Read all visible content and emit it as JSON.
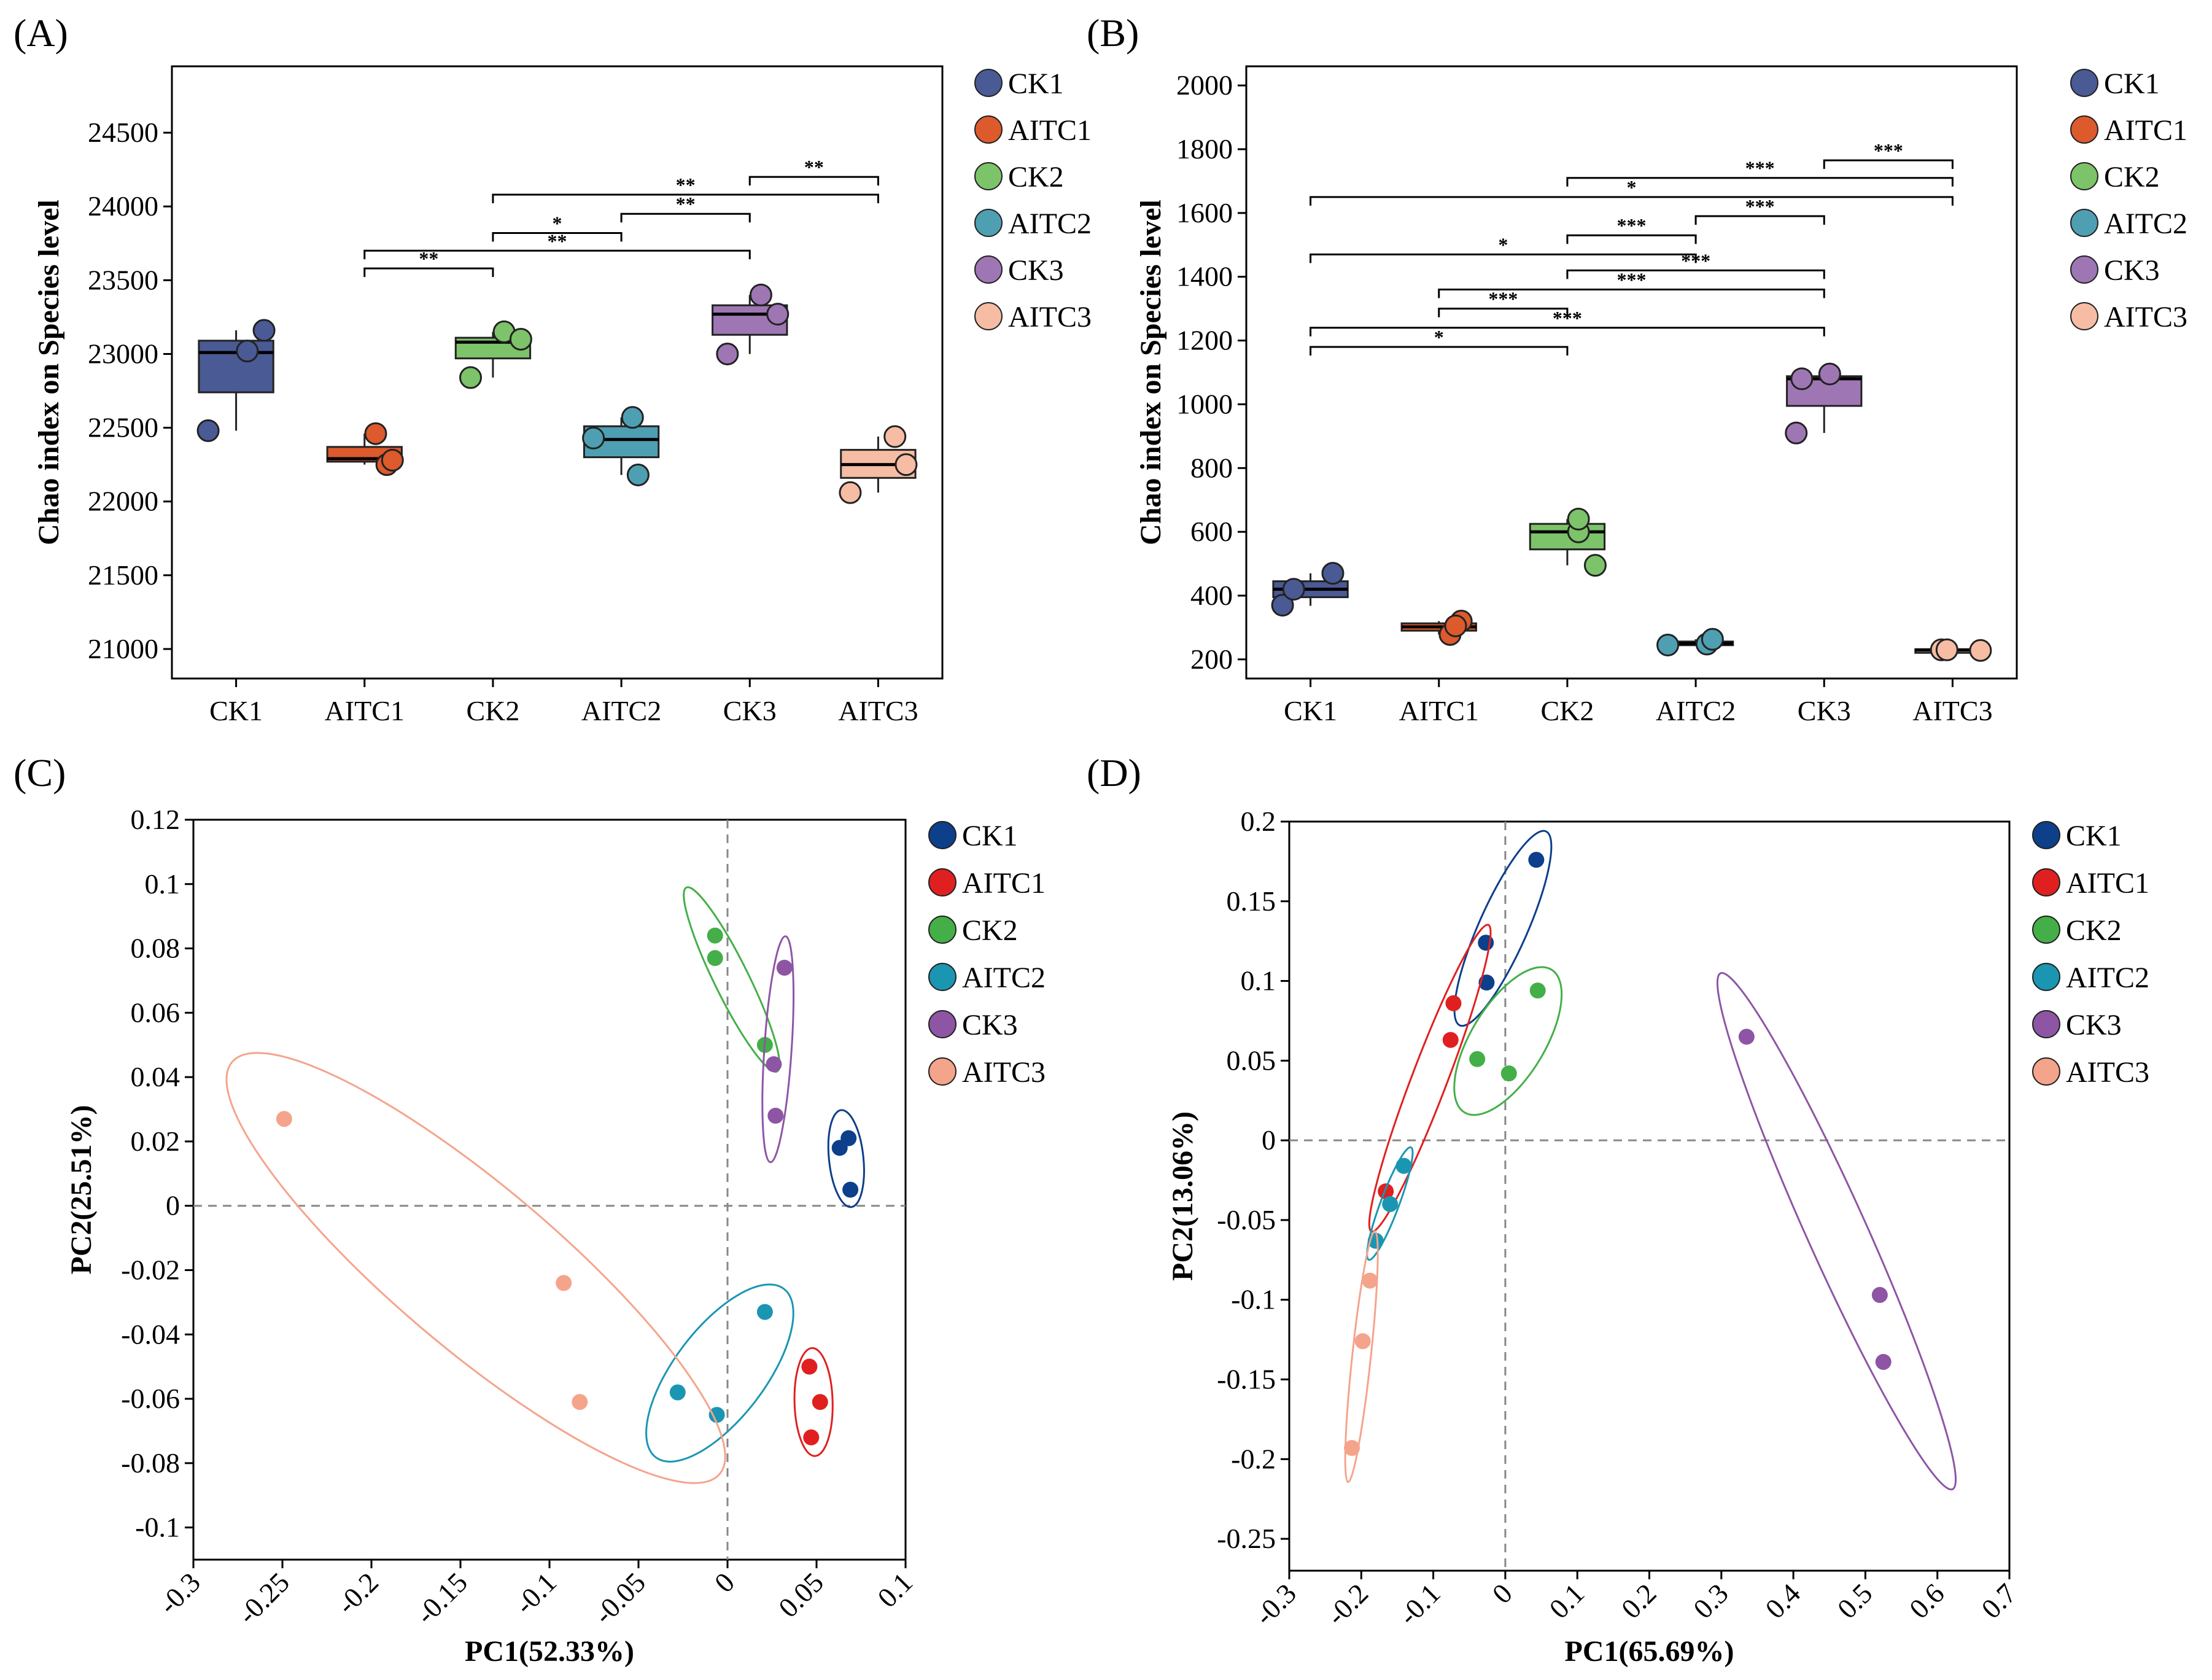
{
  "colors": {
    "box": {
      "CK1": "#4a5a94",
      "AITC1": "#dc5a2c",
      "CK2": "#7cc36a",
      "AITC2": "#4f9fb2",
      "CK3": "#9f76b4",
      "AITC3": "#f6bca4"
    },
    "pca": {
      "CK1": "#0d3f8a",
      "AITC1": "#e02020",
      "CK2": "#44af48",
      "AITC2": "#1a96b2",
      "CK3": "#8e55a4",
      "AITC3": "#f5a48c"
    }
  },
  "chart_data": [
    {
      "id": "A",
      "type": "box",
      "panel_label": "(A)",
      "ylabel": "Chao index on Species level",
      "xlabel": "",
      "ylim": [
        20800,
        24950
      ],
      "yticks": [
        21000,
        21500,
        22000,
        22500,
        23000,
        23500,
        24000,
        24500
      ],
      "categories": [
        "CK1",
        "AITC1",
        "CK2",
        "AITC2",
        "CK3",
        "AITC3"
      ],
      "boxes": [
        {
          "q1": 22740,
          "median": 23010,
          "q3": 23090,
          "lo": 22480,
          "hi": 23160
        },
        {
          "q1": 22270,
          "median": 22290,
          "q3": 22370,
          "lo": 22250,
          "hi": 22460
        },
        {
          "q1": 22970,
          "median": 23080,
          "q3": 23110,
          "lo": 22840,
          "hi": 23150
        },
        {
          "q1": 22300,
          "median": 22420,
          "q3": 22510,
          "lo": 22180,
          "hi": 22570
        },
        {
          "q1": 23130,
          "median": 23270,
          "q3": 23330,
          "lo": 23000,
          "hi": 23400
        },
        {
          "q1": 22160,
          "median": 22250,
          "q3": 22350,
          "lo": 22060,
          "hi": 22440
        }
      ],
      "points": [
        [
          [
            -0.5,
            22480
          ],
          [
            0.2,
            23020
          ],
          [
            0.5,
            23160
          ]
        ],
        [
          [
            0.2,
            22460
          ],
          [
            0.4,
            22250
          ],
          [
            0.5,
            22280
          ]
        ],
        [
          [
            0.2,
            23150
          ],
          [
            -0.4,
            22840
          ],
          [
            0.5,
            23100
          ]
        ],
        [
          [
            -0.5,
            22430
          ],
          [
            0.2,
            22570
          ],
          [
            0.3,
            22180
          ]
        ],
        [
          [
            0.2,
            23400
          ],
          [
            -0.4,
            23000
          ],
          [
            0.5,
            23270
          ]
        ],
        [
          [
            -0.5,
            22060
          ],
          [
            0.3,
            22440
          ],
          [
            0.5,
            22250
          ]
        ]
      ],
      "significance": [
        {
          "from": 1,
          "to": 2,
          "label": "**",
          "y": 23580
        },
        {
          "from": 1,
          "to": 4,
          "label": "**",
          "y": 23700
        },
        {
          "from": 2,
          "to": 3,
          "label": "*",
          "y": 23820
        },
        {
          "from": 3,
          "to": 4,
          "label": "**",
          "y": 23950
        },
        {
          "from": 2,
          "to": 5,
          "label": "**",
          "y": 24080
        },
        {
          "from": 4,
          "to": 5,
          "label": "**",
          "y": 24200
        }
      ],
      "legend": [
        "CK1",
        "AITC1",
        "CK2",
        "AITC2",
        "CK3",
        "AITC3"
      ]
    },
    {
      "id": "B",
      "type": "box",
      "panel_label": "(B)",
      "ylabel": "Chao index on Species level",
      "xlabel": "",
      "ylim": [
        140,
        2060
      ],
      "yticks": [
        200,
        400,
        600,
        800,
        1000,
        1200,
        1400,
        1600,
        1800,
        2000
      ],
      "categories": [
        "CK1",
        "AITC1",
        "CK2",
        "AITC2",
        "CK3",
        "AITC3"
      ],
      "boxes": [
        {
          "q1": 395,
          "median": 420,
          "q3": 445,
          "lo": 368,
          "hi": 470
        },
        {
          "q1": 290,
          "median": 302,
          "q3": 313,
          "lo": 278,
          "hi": 320
        },
        {
          "q1": 545,
          "median": 600,
          "q3": 625,
          "lo": 495,
          "hi": 640
        },
        {
          "q1": 245,
          "median": 250,
          "q3": 256,
          "lo": 243,
          "hi": 263
        },
        {
          "q1": 995,
          "median": 1080,
          "q3": 1088,
          "lo": 910,
          "hi": 1095
        },
        {
          "q1": 226,
          "median": 229,
          "q3": 232,
          "lo": 226,
          "hi": 232
        }
      ],
      "points": [
        [
          [
            -0.5,
            370
          ],
          [
            -0.3,
            420
          ],
          [
            0.4,
            470
          ]
        ],
        [
          [
            0.2,
            278
          ],
          [
            0.4,
            320
          ],
          [
            0.3,
            305
          ]
        ],
        [
          [
            0.2,
            600
          ],
          [
            0.2,
            640
          ],
          [
            0.5,
            495
          ]
        ],
        [
          [
            -0.5,
            245
          ],
          [
            0.2,
            248
          ],
          [
            0.3,
            263
          ]
        ],
        [
          [
            -0.5,
            910
          ],
          [
            -0.4,
            1080
          ],
          [
            0.1,
            1095
          ]
        ],
        [
          [
            -0.2,
            230
          ],
          [
            -0.1,
            230
          ],
          [
            0.5,
            228
          ]
        ]
      ],
      "significance": [
        {
          "from": 0,
          "to": 2,
          "label": "*",
          "y": 1180
        },
        {
          "from": 0,
          "to": 4,
          "label": "***",
          "y": 1240
        },
        {
          "from": 1,
          "to": 2,
          "label": "***",
          "y": 1300
        },
        {
          "from": 1,
          "to": 4,
          "label": "***",
          "y": 1360
        },
        {
          "from": 2,
          "to": 4,
          "label": "***",
          "y": 1420
        },
        {
          "from": 0,
          "to": 3,
          "label": "*",
          "y": 1470
        },
        {
          "from": 2,
          "to": 3,
          "label": "***",
          "y": 1530
        },
        {
          "from": 3,
          "to": 4,
          "label": "***",
          "y": 1590
        },
        {
          "from": 0,
          "to": 5,
          "label": "*",
          "y": 1650
        },
        {
          "from": 2,
          "to": 5,
          "label": "***",
          "y": 1710
        },
        {
          "from": 4,
          "to": 5,
          "label": "***",
          "y": 1765
        }
      ],
      "legend": [
        "CK1",
        "AITC1",
        "CK2",
        "AITC2",
        "CK3",
        "AITC3"
      ]
    },
    {
      "id": "C",
      "type": "scatter",
      "panel_label": "(C)",
      "xlabel": "PC1(52.33%)",
      "ylabel": "PC2(25.51%)",
      "xlim": [
        -0.3,
        0.1
      ],
      "ylim": [
        -0.11,
        0.12
      ],
      "xticks": [
        -0.3,
        -0.25,
        -0.2,
        -0.15,
        -0.1,
        -0.05,
        0,
        0.05,
        0.1
      ],
      "xticklabels": [
        "-0.3",
        "-0.25",
        "-0.2",
        "-0.15",
        "-0.1",
        "-0.05",
        "0",
        "0.05",
        "0.1"
      ],
      "yticks": [
        -0.1,
        -0.08,
        -0.06,
        -0.04,
        -0.02,
        0,
        0.02,
        0.04,
        0.06,
        0.08,
        0.1,
        0.12
      ],
      "yticklabels": [
        "-0.1",
        "-0.08",
        "-0.06",
        "-0.04",
        "-0.02",
        "0",
        "0.02",
        "0.04",
        "0.06",
        "0.08",
        "0.1",
        "0.12"
      ],
      "series": [
        {
          "name": "CK1",
          "points": [
            [
              0.063,
              0.018
            ],
            [
              0.068,
              0.021
            ],
            [
              0.069,
              0.005
            ]
          ]
        },
        {
          "name": "AITC1",
          "points": [
            [
              0.046,
              -0.05
            ],
            [
              0.052,
              -0.061
            ],
            [
              0.047,
              -0.072
            ]
          ]
        },
        {
          "name": "CK2",
          "points": [
            [
              -0.007,
              0.084
            ],
            [
              -0.007,
              0.077
            ],
            [
              0.021,
              0.05
            ]
          ]
        },
        {
          "name": "AITC2",
          "points": [
            [
              0.021,
              -0.033
            ],
            [
              -0.028,
              -0.058
            ],
            [
              -0.006,
              -0.065
            ]
          ]
        },
        {
          "name": "CK3",
          "points": [
            [
              0.032,
              0.074
            ],
            [
              0.026,
              0.044
            ],
            [
              0.027,
              0.028
            ]
          ]
        },
        {
          "name": "AITC3",
          "points": [
            [
              -0.249,
              0.027
            ],
            [
              -0.092,
              -0.024
            ],
            [
              -0.083,
              -0.061
            ]
          ]
        }
      ],
      "legend": [
        "CK1",
        "AITC1",
        "CK2",
        "AITC2",
        "CK3",
        "AITC3"
      ]
    },
    {
      "id": "D",
      "type": "scatter",
      "panel_label": "(D)",
      "xlabel": "PC1(65.69%)",
      "ylabel": "PC2(13.06%)",
      "xlim": [
        -0.3,
        0.7
      ],
      "ylim": [
        -0.27,
        0.2
      ],
      "xticks": [
        -0.3,
        -0.2,
        -0.1,
        0,
        0.1,
        0.2,
        0.3,
        0.4,
        0.5,
        0.6,
        0.7
      ],
      "xticklabels": [
        "-0.3",
        "-0.2",
        "-0.1",
        "0",
        "0.1",
        "0.2",
        "0.3",
        "0.4",
        "0.5",
        "0.6",
        "0.7"
      ],
      "yticks": [
        -0.25,
        -0.2,
        -0.15,
        -0.1,
        -0.05,
        0,
        0.05,
        0.1,
        0.15,
        0.2
      ],
      "yticklabels": [
        "-0.25",
        "-0.2",
        "-0.15",
        "-0.1",
        "-0.05",
        "0",
        "0.05",
        "0.1",
        "0.15",
        "0.2"
      ],
      "series": [
        {
          "name": "CK1",
          "points": [
            [
              0.043,
              0.176
            ],
            [
              -0.027,
              0.124
            ],
            [
              -0.026,
              0.099
            ]
          ]
        },
        {
          "name": "AITC1",
          "points": [
            [
              -0.072,
              0.086
            ],
            [
              -0.076,
              0.063
            ],
            [
              -0.166,
              -0.032
            ]
          ]
        },
        {
          "name": "CK2",
          "points": [
            [
              0.045,
              0.094
            ],
            [
              -0.039,
              0.051
            ],
            [
              0.005,
              0.042
            ]
          ]
        },
        {
          "name": "AITC2",
          "points": [
            [
              -0.141,
              -0.016
            ],
            [
              -0.16,
              -0.04
            ],
            [
              -0.18,
              -0.063
            ]
          ]
        },
        {
          "name": "CK3",
          "points": [
            [
              0.335,
              0.065
            ],
            [
              0.52,
              -0.097
            ],
            [
              0.525,
              -0.139
            ]
          ]
        },
        {
          "name": "AITC3",
          "points": [
            [
              -0.188,
              -0.088
            ],
            [
              -0.198,
              -0.126
            ],
            [
              -0.213,
              -0.193
            ]
          ]
        }
      ],
      "legend": [
        "CK1",
        "AITC1",
        "CK2",
        "AITC2",
        "CK3",
        "AITC3"
      ]
    }
  ]
}
